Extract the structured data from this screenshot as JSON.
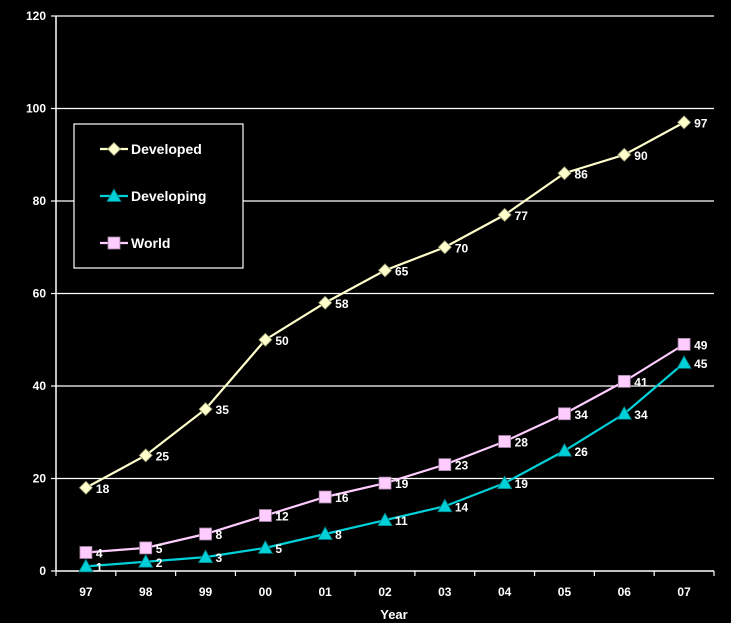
{
  "chart_data": {
    "type": "line",
    "title": "",
    "xlabel": "Year",
    "ylabel": "",
    "categories": [
      "97",
      "98",
      "99",
      "00",
      "01",
      "02",
      "03",
      "04",
      "05",
      "06",
      "07"
    ],
    "ylim": [
      0,
      120
    ],
    "yticks": [
      0,
      20,
      40,
      60,
      80,
      100,
      120
    ],
    "grid": "horizontal",
    "legend_position": "top-left",
    "series": [
      {
        "name": "Developed",
        "marker": "diamond",
        "color": "#ffffcc",
        "values": [
          18,
          25,
          35,
          50,
          58,
          65,
          70,
          77,
          86,
          90,
          97
        ]
      },
      {
        "name": "Developing",
        "marker": "triangle",
        "color": "#00d0d8",
        "values": [
          1,
          2,
          3,
          5,
          8,
          11,
          14,
          19,
          26,
          34,
          45
        ]
      },
      {
        "name": "World",
        "marker": "square",
        "color": "#ffccff",
        "values": [
          4,
          5,
          8,
          12,
          16,
          19,
          23,
          28,
          34,
          41,
          49
        ]
      }
    ]
  }
}
